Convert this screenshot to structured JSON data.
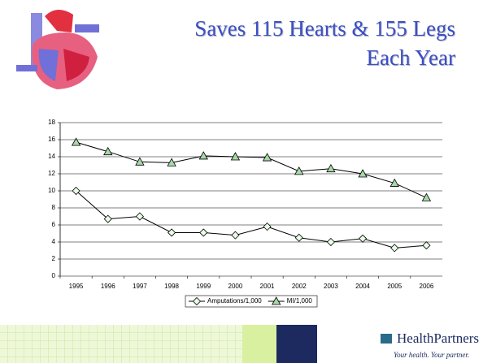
{
  "chart_data": {
    "type": "line",
    "title": [
      "Saves 115 Hearts & 155 Legs",
      "Each Year"
    ],
    "categories": [
      "1995",
      "1996",
      "1997",
      "1998",
      "1999",
      "2000",
      "2001",
      "2002",
      "2003",
      "2004",
      "2005",
      "2006"
    ],
    "series": [
      {
        "name": "Amputations/1,000",
        "color": "#000000",
        "marker": "diamond",
        "marker_color": "#e6ffe6",
        "values": [
          10.0,
          6.7,
          7.0,
          5.1,
          5.1,
          4.8,
          5.8,
          4.5,
          4.0,
          4.4,
          3.3,
          3.6
        ]
      },
      {
        "name": "MI/1,000",
        "color": "#000000",
        "marker": "triangle",
        "marker_color": "#a8d8a8",
        "values": [
          15.7,
          14.6,
          13.4,
          13.3,
          14.1,
          14.0,
          13.9,
          12.3,
          12.6,
          12.0,
          10.9,
          9.2
        ]
      }
    ],
    "ylim": [
      0,
      18
    ],
    "yticks": [
      0,
      2,
      4,
      6,
      8,
      10,
      12,
      14,
      16,
      18
    ],
    "grid": true,
    "legend": "bottom"
  },
  "footer": {
    "logo": "HealthPartners",
    "tagline": "Your health. Your partner."
  }
}
